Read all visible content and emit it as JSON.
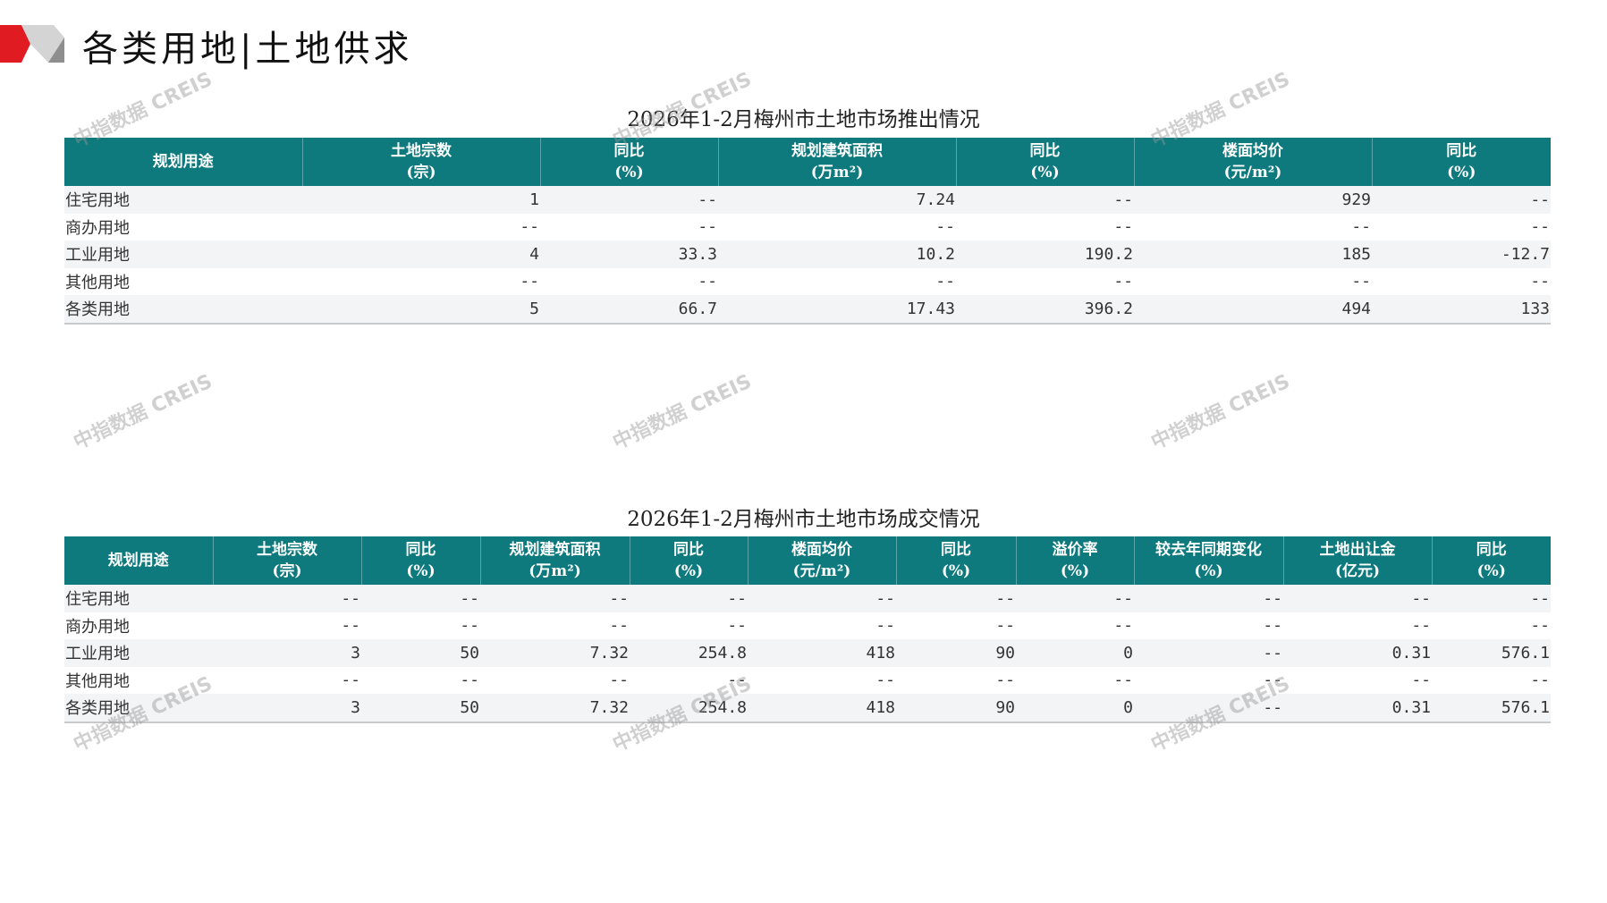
{
  "header": {
    "title": "各类用地|土地供求"
  },
  "colors": {
    "header_bg": "#0e7a7e",
    "logo_red": "#e01b22",
    "logo_gray": "#9e9e9e"
  },
  "watermark": "中指数据 CREIS",
  "supply_table": {
    "title": "2026年1-2月梅州市土地市场推出情况",
    "columns": [
      [
        "规划用途",
        ""
      ],
      [
        "土地宗数",
        "(宗)"
      ],
      [
        "同比",
        "(%)"
      ],
      [
        "规划建筑面积",
        "(万m²)"
      ],
      [
        "同比",
        "(%)"
      ],
      [
        "楼面均价",
        "(元/m²)"
      ],
      [
        "同比",
        "(%)"
      ]
    ],
    "rows": [
      [
        "住宅用地",
        "1",
        "--",
        "7.24",
        "--",
        "929",
        "--"
      ],
      [
        "商办用地",
        "--",
        "--",
        "--",
        "--",
        "--",
        "--"
      ],
      [
        "工业用地",
        "4",
        "33.3",
        "10.2",
        "190.2",
        "185",
        "-12.7"
      ],
      [
        "其他用地",
        "--",
        "--",
        "--",
        "--",
        "--",
        "--"
      ],
      [
        "各类用地",
        "5",
        "66.7",
        "17.43",
        "396.2",
        "494",
        "133"
      ]
    ]
  },
  "deal_table": {
    "title": "2026年1-2月梅州市土地市场成交情况",
    "columns": [
      [
        "规划用途",
        ""
      ],
      [
        "土地宗数",
        "(宗)"
      ],
      [
        "同比",
        "(%)"
      ],
      [
        "规划建筑面积",
        "(万m²)"
      ],
      [
        "同比",
        "(%)"
      ],
      [
        "楼面均价",
        "(元/m²)"
      ],
      [
        "同比",
        "(%)"
      ],
      [
        "溢价率",
        "(%)"
      ],
      [
        "较去年同期变化",
        "(%)"
      ],
      [
        "土地出让金",
        "(亿元)"
      ],
      [
        "同比",
        "(%)"
      ]
    ],
    "rows": [
      [
        "住宅用地",
        "--",
        "--",
        "--",
        "--",
        "--",
        "--",
        "--",
        "--",
        "--",
        "--"
      ],
      [
        "商办用地",
        "--",
        "--",
        "--",
        "--",
        "--",
        "--",
        "--",
        "--",
        "--",
        "--"
      ],
      [
        "工业用地",
        "3",
        "50",
        "7.32",
        "254.8",
        "418",
        "90",
        "0",
        "--",
        "0.31",
        "576.1"
      ],
      [
        "其他用地",
        "--",
        "--",
        "--",
        "--",
        "--",
        "--",
        "--",
        "--",
        "--",
        "--"
      ],
      [
        "各类用地",
        "3",
        "50",
        "7.32",
        "254.8",
        "418",
        "90",
        "0",
        "--",
        "0.31",
        "576.1"
      ]
    ]
  }
}
